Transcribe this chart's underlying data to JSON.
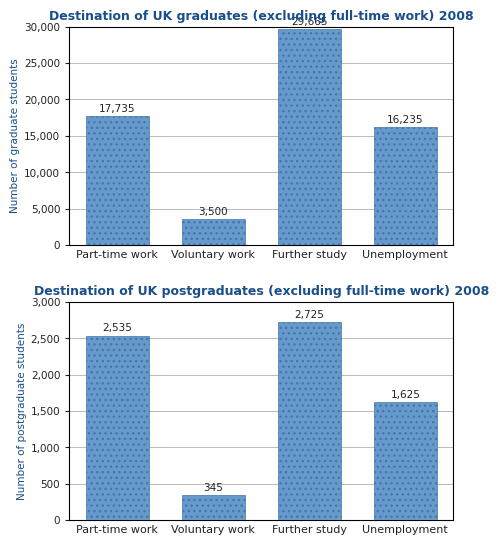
{
  "chart1": {
    "title": "Destination of UK graduates (excluding full-time work) 2008",
    "categories": [
      "Part-time work",
      "Voluntary work",
      "Further study",
      "Unemployment"
    ],
    "values": [
      17735,
      3500,
      29665,
      16235
    ],
    "labels": [
      "17,735",
      "3,500",
      "29,665",
      "16,235"
    ],
    "ylabel": "Number of graduate students",
    "ylim": [
      0,
      30000
    ],
    "yticks": [
      0,
      5000,
      10000,
      15000,
      20000,
      25000,
      30000
    ],
    "ytick_labels": [
      "0",
      "5,000",
      "10,000",
      "15,000",
      "20,000",
      "25,000",
      "30,000"
    ]
  },
  "chart2": {
    "title": "Destination of UK postgraduates (excluding full-time work) 2008",
    "categories": [
      "Part-time work",
      "Voluntary work",
      "Further study",
      "Unemployment"
    ],
    "values": [
      2535,
      345,
      2725,
      1625
    ],
    "labels": [
      "2,535",
      "345",
      "2,725",
      "1,625"
    ],
    "ylabel": "Number of postgraduate students",
    "ylim": [
      0,
      3000
    ],
    "yticks": [
      0,
      500,
      1000,
      1500,
      2000,
      2500,
      3000
    ],
    "ytick_labels": [
      "0",
      "500",
      "1,000",
      "1,500",
      "2,000",
      "2,500",
      "3,000"
    ]
  },
  "bar_color": "#6699CC",
  "bar_edgecolor": "#4477AA",
  "title_color": "#1A4E8A",
  "label_color": "#222222",
  "ylabel_color": "#1A4E8A",
  "xlabel_color": "#222222",
  "background_color": "#FFFFFF",
  "title_fontsize": 9.0,
  "label_fontsize": 7.5,
  "ylabel_fontsize": 7.5,
  "xlabel_fontsize": 8.0,
  "tick_fontsize": 7.5,
  "bar_width": 0.65
}
